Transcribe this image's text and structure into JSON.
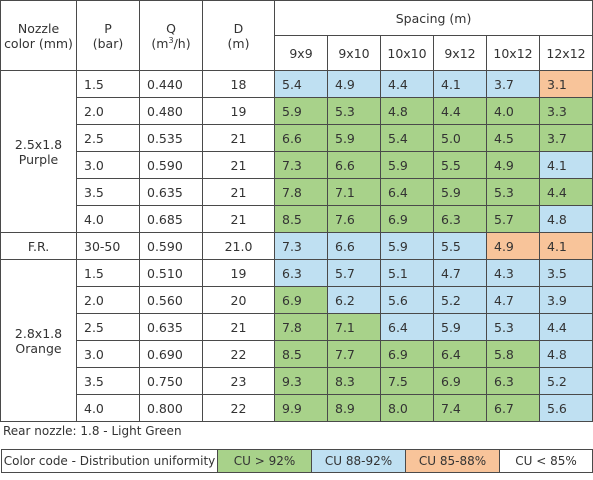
{
  "headers": {
    "nozzle": "Nozzle color (mm)",
    "p": [
      "P",
      "(bar)"
    ],
    "q": [
      "Q",
      "(m",
      "3",
      "/h)"
    ],
    "d": [
      "D",
      "(m)"
    ],
    "spacing": "Spacing (m)",
    "spacing_cols": [
      "9x9",
      "9x10",
      "10x10",
      "9x12",
      "10x12",
      "12x12"
    ]
  },
  "groups": [
    {
      "label": [
        "2.5x1.8",
        "Purple"
      ],
      "rows": [
        {
          "p": "1.5",
          "q": "0.440",
          "d": "18",
          "cells": [
            {
              "v": "5.4",
              "c": "blue"
            },
            {
              "v": "4.9",
              "c": "blue"
            },
            {
              "v": "4.4",
              "c": "blue"
            },
            {
              "v": "4.1",
              "c": "blue"
            },
            {
              "v": "3.7",
              "c": "blue"
            },
            {
              "v": "3.1",
              "c": "orange"
            }
          ]
        },
        {
          "p": "2.0",
          "q": "0.480",
          "d": "19",
          "cells": [
            {
              "v": "5.9",
              "c": "green"
            },
            {
              "v": "5.3",
              "c": "green"
            },
            {
              "v": "4.8",
              "c": "green"
            },
            {
              "v": "4.4",
              "c": "green"
            },
            {
              "v": "4.0",
              "c": "green"
            },
            {
              "v": "3.3",
              "c": "green"
            }
          ]
        },
        {
          "p": "2.5",
          "q": "0.535",
          "d": "21",
          "cells": [
            {
              "v": "6.6",
              "c": "green"
            },
            {
              "v": "5.9",
              "c": "green"
            },
            {
              "v": "5.4",
              "c": "green"
            },
            {
              "v": "5.0",
              "c": "green"
            },
            {
              "v": "4.5",
              "c": "green"
            },
            {
              "v": "3.7",
              "c": "green"
            }
          ]
        },
        {
          "p": "3.0",
          "q": "0.590",
          "d": "21",
          "cells": [
            {
              "v": "7.3",
              "c": "green"
            },
            {
              "v": "6.6",
              "c": "green"
            },
            {
              "v": "5.9",
              "c": "green"
            },
            {
              "v": "5.5",
              "c": "green"
            },
            {
              "v": "4.9",
              "c": "green"
            },
            {
              "v": "4.1",
              "c": "blue"
            }
          ]
        },
        {
          "p": "3.5",
          "q": "0.635",
          "d": "21",
          "cells": [
            {
              "v": "7.8",
              "c": "green"
            },
            {
              "v": "7.1",
              "c": "green"
            },
            {
              "v": "6.4",
              "c": "green"
            },
            {
              "v": "5.9",
              "c": "green"
            },
            {
              "v": "5.3",
              "c": "green"
            },
            {
              "v": "4.4",
              "c": "green"
            }
          ]
        },
        {
          "p": "4.0",
          "q": "0.685",
          "d": "21",
          "cells": [
            {
              "v": "8.5",
              "c": "green"
            },
            {
              "v": "7.6",
              "c": "green"
            },
            {
              "v": "6.9",
              "c": "green"
            },
            {
              "v": "6.3",
              "c": "green"
            },
            {
              "v": "5.7",
              "c": "green"
            },
            {
              "v": "4.8",
              "c": "blue"
            }
          ]
        }
      ]
    },
    {
      "label": [
        "F.R."
      ],
      "rows": [
        {
          "p": "30-50",
          "q": "0.590",
          "d": "21.0",
          "cells": [
            {
              "v": "7.3",
              "c": "blue"
            },
            {
              "v": "6.6",
              "c": "blue"
            },
            {
              "v": "5.9",
              "c": "blue"
            },
            {
              "v": "5.5",
              "c": "blue"
            },
            {
              "v": "4.9",
              "c": "orange"
            },
            {
              "v": "4.1",
              "c": "orange"
            }
          ]
        }
      ]
    },
    {
      "label": [
        "2.8x1.8",
        "Orange"
      ],
      "rows": [
        {
          "p": "1.5",
          "q": "0.510",
          "d": "19",
          "cells": [
            {
              "v": "6.3",
              "c": "blue"
            },
            {
              "v": "5.7",
              "c": "blue"
            },
            {
              "v": "5.1",
              "c": "blue"
            },
            {
              "v": "4.7",
              "c": "blue"
            },
            {
              "v": "4.3",
              "c": "blue"
            },
            {
              "v": "3.5",
              "c": "blue"
            }
          ]
        },
        {
          "p": "2.0",
          "q": "0.560",
          "d": "20",
          "cells": [
            {
              "v": "6.9",
              "c": "green"
            },
            {
              "v": "6.2",
              "c": "blue"
            },
            {
              "v": "5.6",
              "c": "blue"
            },
            {
              "v": "5.2",
              "c": "blue"
            },
            {
              "v": "4.7",
              "c": "blue"
            },
            {
              "v": "3.9",
              "c": "blue"
            }
          ]
        },
        {
          "p": "2.5",
          "q": "0.635",
          "d": "21",
          "cells": [
            {
              "v": "7.8",
              "c": "green"
            },
            {
              "v": "7.1",
              "c": "green"
            },
            {
              "v": "6.4",
              "c": "blue"
            },
            {
              "v": "5.9",
              "c": "blue"
            },
            {
              "v": "5.3",
              "c": "blue"
            },
            {
              "v": "4.4",
              "c": "blue"
            }
          ]
        },
        {
          "p": "3.0",
          "q": "0.690",
          "d": "22",
          "cells": [
            {
              "v": "8.5",
              "c": "green"
            },
            {
              "v": "7.7",
              "c": "green"
            },
            {
              "v": "6.9",
              "c": "green"
            },
            {
              "v": "6.4",
              "c": "green"
            },
            {
              "v": "5.8",
              "c": "green"
            },
            {
              "v": "4.8",
              "c": "blue"
            }
          ]
        },
        {
          "p": "3.5",
          "q": "0.750",
          "d": "23",
          "cells": [
            {
              "v": "9.3",
              "c": "green"
            },
            {
              "v": "8.3",
              "c": "green"
            },
            {
              "v": "7.5",
              "c": "green"
            },
            {
              "v": "6.9",
              "c": "green"
            },
            {
              "v": "6.3",
              "c": "green"
            },
            {
              "v": "5.2",
              "c": "blue"
            }
          ]
        },
        {
          "p": "4.0",
          "q": "0.800",
          "d": "22",
          "cells": [
            {
              "v": "9.9",
              "c": "green"
            },
            {
              "v": "8.9",
              "c": "green"
            },
            {
              "v": "8.0",
              "c": "green"
            },
            {
              "v": "7.4",
              "c": "green"
            },
            {
              "v": "6.7",
              "c": "green"
            },
            {
              "v": "5.6",
              "c": "blue"
            }
          ]
        }
      ]
    }
  ],
  "footnote": "Rear nozzle: 1.8 - Light Green",
  "legend": {
    "title": "Color code - Distribution uniformity",
    "items": [
      {
        "label": "CU > 92%",
        "c": "green"
      },
      {
        "label": "CU 88-92%",
        "c": "blue"
      },
      {
        "label": "CU 85-88%",
        "c": "orange"
      },
      {
        "label": "CU < 85%",
        "c": "white"
      }
    ]
  },
  "colors": {
    "green": "#a8d28a",
    "blue": "#bfe0f2",
    "orange": "#f8c49a",
    "white": "#ffffff",
    "border": "#4a4a4a",
    "text": "#333333"
  }
}
